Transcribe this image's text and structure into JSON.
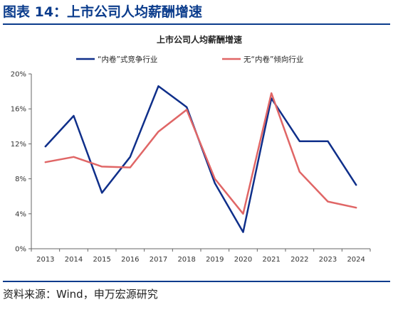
{
  "figure": {
    "title": "图表 14：上市公司人均薪酬增速",
    "source": "资料来源：Wind，申万宏源研究"
  },
  "chart_data": {
    "type": "line",
    "title": "上市公司人均薪酬增速",
    "x": [
      "2013",
      "2014",
      "2015",
      "2016",
      "2017",
      "2018",
      "2019",
      "2020",
      "2021",
      "2022",
      "2023",
      "2024"
    ],
    "series": [
      {
        "name": "“内卷”式竞争行业",
        "color": "#0f2f8a",
        "values": [
          11.7,
          15.2,
          6.4,
          10.5,
          18.6,
          16.2,
          7.5,
          1.9,
          17.2,
          12.3,
          12.3,
          7.3
        ]
      },
      {
        "name": "无“内卷”倾向行业",
        "color": "#e06666",
        "values": [
          9.9,
          10.5,
          9.4,
          9.3,
          13.4,
          15.9,
          8.0,
          4.0,
          17.8,
          8.8,
          5.4,
          4.7
        ]
      }
    ],
    "ylim": [
      0,
      20
    ],
    "yticks": [
      "0%",
      "4%",
      "8%",
      "12%",
      "16%",
      "20%"
    ],
    "ytick_values": [
      0,
      4,
      8,
      12,
      16,
      20
    ],
    "grid": false,
    "legend": "top"
  }
}
